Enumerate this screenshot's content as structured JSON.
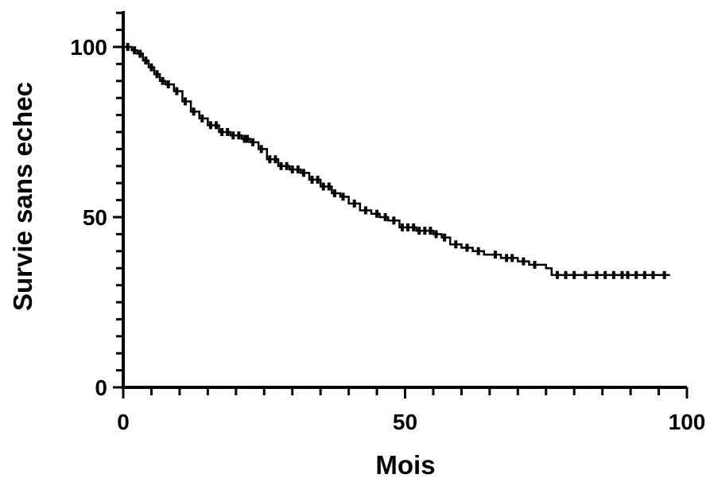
{
  "chart_data": {
    "type": "line",
    "subtype": "kaplan-meier",
    "title": "",
    "xlabel": "Mois",
    "ylabel": "Survie sans echec",
    "xlim": [
      0,
      100
    ],
    "ylim": [
      0,
      100
    ],
    "x_ticks": [
      "0",
      "50",
      "100"
    ],
    "y_ticks": [
      "0",
      "50",
      "100"
    ],
    "x_minor_tick_step": 5,
    "y_minor_tick_step": 5,
    "grid": false,
    "legend": "none",
    "line_color": "#000000",
    "series": [
      {
        "x": [
          0,
          1.5,
          2.5,
          3.5,
          4.5,
          5.5,
          6.5,
          7.5,
          9,
          10.5,
          12,
          13.5,
          15,
          17,
          19,
          21,
          22.5,
          24,
          25.5,
          27.5,
          29.5,
          31.5,
          33,
          35,
          37,
          38.5,
          40,
          42,
          44,
          45.5,
          47,
          49,
          52,
          55,
          56.5,
          58,
          60,
          62,
          64,
          67,
          70,
          72,
          75,
          76,
          97
        ],
        "y": [
          100,
          99,
          98,
          96,
          94,
          92,
          90,
          89,
          87,
          84,
          81,
          79,
          77,
          75,
          74,
          73,
          72,
          70,
          67,
          65,
          64,
          63,
          61,
          59,
          57,
          56,
          54,
          52,
          51,
          50,
          49,
          47,
          46,
          45,
          44,
          42,
          41,
          40,
          39,
          38,
          37,
          36,
          35,
          33,
          33
        ]
      }
    ],
    "censor_marks": [
      0.8,
      2,
      3,
      4,
      5,
      6,
      7,
      8,
      9.5,
      11,
      12.5,
      14,
      15.5,
      16.5,
      17.5,
      18.5,
      19.5,
      20.5,
      21.5,
      22,
      23,
      24.5,
      26,
      27,
      28,
      29,
      30,
      31,
      32,
      33.5,
      34.5,
      35.5,
      36.5,
      37.5,
      39,
      41,
      43,
      45,
      46.5,
      48,
      49.5,
      50.5,
      51.5,
      52.5,
      53.5,
      54.5,
      55.5,
      57,
      59,
      61,
      63,
      66,
      68,
      69,
      71,
      73,
      77,
      78.5,
      80,
      82,
      84,
      85.5,
      87,
      88.5,
      89.5,
      91,
      92.5,
      94,
      96
    ]
  }
}
